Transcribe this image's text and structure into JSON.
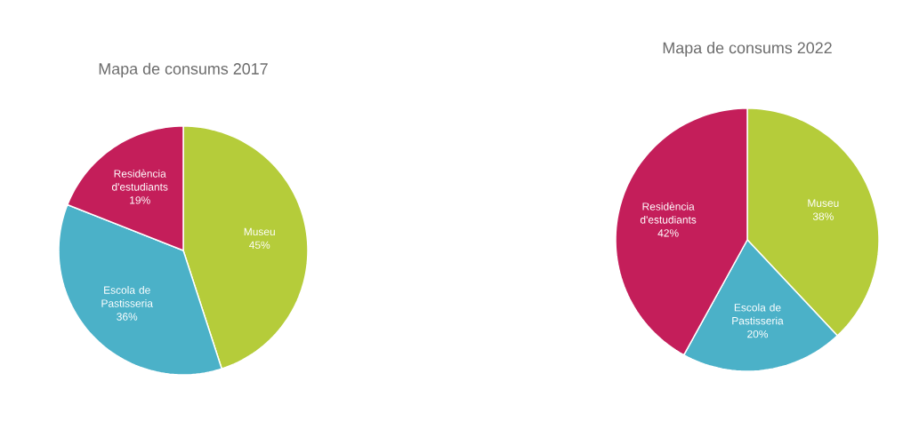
{
  "chart_data": [
    {
      "type": "pie",
      "title": "Mapa de consums 2017",
      "categories": [
        "Museu",
        "Escola de Pastisseria",
        "Residència d'estudiants"
      ],
      "values": [
        45,
        36,
        19
      ],
      "value_labels": [
        "45%",
        "36%",
        "19%"
      ],
      "colors": [
        "#b5cc3a",
        "#4bb1c8",
        "#c41e5a"
      ]
    },
    {
      "type": "pie",
      "title": "Mapa de consums 2022",
      "categories": [
        "Museu",
        "Escola de Pastisseria",
        "Residència d'estudiants"
      ],
      "values": [
        38,
        20,
        42
      ],
      "value_labels": [
        "38%",
        "20%",
        "42%"
      ],
      "colors": [
        "#b5cc3a",
        "#4bb1c8",
        "#c41e5a"
      ]
    }
  ]
}
